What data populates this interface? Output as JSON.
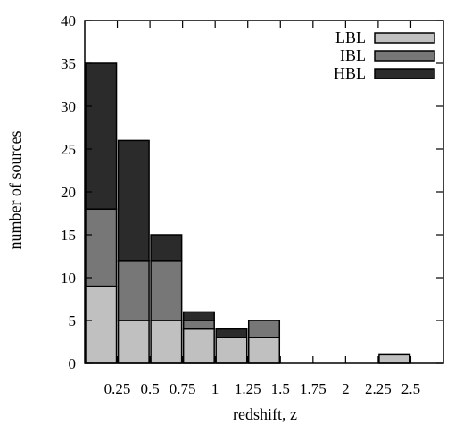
{
  "chart_data": {
    "type": "bar",
    "stacked": true,
    "xlabel": "redshift, z",
    "ylabel": "number of sources",
    "ylim": [
      0,
      40
    ],
    "yticks": [
      "0",
      "5",
      "10",
      "15",
      "20",
      "25",
      "30",
      "35",
      "40"
    ],
    "xlim": [
      0,
      2.75
    ],
    "bin_width": 0.25,
    "xtick_labels": [
      "0.25",
      "0.5",
      "0.75",
      "1",
      "1.25",
      "1.5",
      "1.75",
      "2",
      "2.25",
      "2.5"
    ],
    "bin_edges": [
      0,
      0.25,
      0.5,
      0.75,
      1,
      1.25,
      1.5,
      1.75,
      2,
      2.25,
      2.5
    ],
    "series": [
      {
        "name": "LBL",
        "color": "#c0c0c0",
        "values": [
          9,
          5,
          5,
          4,
          3,
          3,
          0,
          0,
          0,
          1
        ]
      },
      {
        "name": "IBL",
        "color": "#777777",
        "values": [
          9,
          7,
          7,
          1,
          0,
          2,
          0,
          0,
          0,
          0
        ]
      },
      {
        "name": "HBL",
        "color": "#2b2b2b",
        "values": [
          17,
          14,
          3,
          1,
          1,
          0,
          0,
          0,
          0,
          0
        ]
      }
    ],
    "legend_position": "top-right",
    "grid": false
  }
}
